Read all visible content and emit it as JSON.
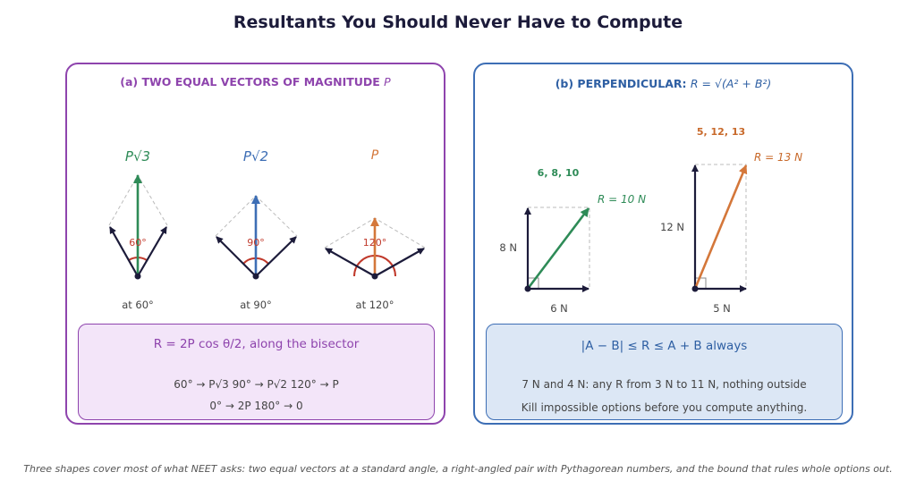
{
  "title": "Resultants You Should Never Have to Compute",
  "panel_a": {
    "heading_prefix": "(a)  TWO EQUAL VECTORS OF MAGNITUDE ",
    "heading_var": "P",
    "cases": [
      {
        "result": "P√3",
        "angle": "60°",
        "caption": "at 60°",
        "color": "#2e8b57"
      },
      {
        "result": "P√2",
        "angle": "90°",
        "caption": "at 90°",
        "color": "#3d6eb5"
      },
      {
        "result": "P",
        "angle": "120°",
        "caption": "at 120°",
        "color": "#d4773a"
      }
    ],
    "formula": "R = 2P cos θ/2,  along the bisector",
    "line1": "60° → P√3      90° → P√2      120° → P",
    "line2": "0° → 2P      180° → 0"
  },
  "panel_b": {
    "heading_prefix": "(b)  PERPENDICULAR:  ",
    "heading_formula": "R = √(A² + B²)",
    "triangles": [
      {
        "triple": "6, 8, 10",
        "result": "R = 10 N",
        "vertical": "8 N",
        "horizontal": "6 N",
        "color": "#2e8b57"
      },
      {
        "triple": "5, 12, 13",
        "result": "R = 13 N",
        "vertical": "12 N",
        "horizontal": "5 N",
        "color": "#c8692a"
      }
    ],
    "formula": "|A − B| ≤ R ≤ A + B   always",
    "line1": "7 N and 4 N: any R from 3 N to 11 N, nothing outside",
    "line2": "Kill impossible options before you compute anything."
  },
  "footer": "Three shapes cover most of what NEET asks: two equal vectors at a standard angle, a right-angled pair with Pythagorean numbers, and the bound that rules whole options out.",
  "colors": {
    "dark": "#1c1b3a",
    "arc": "#c0392b",
    "guide": "#bbbbbb"
  }
}
